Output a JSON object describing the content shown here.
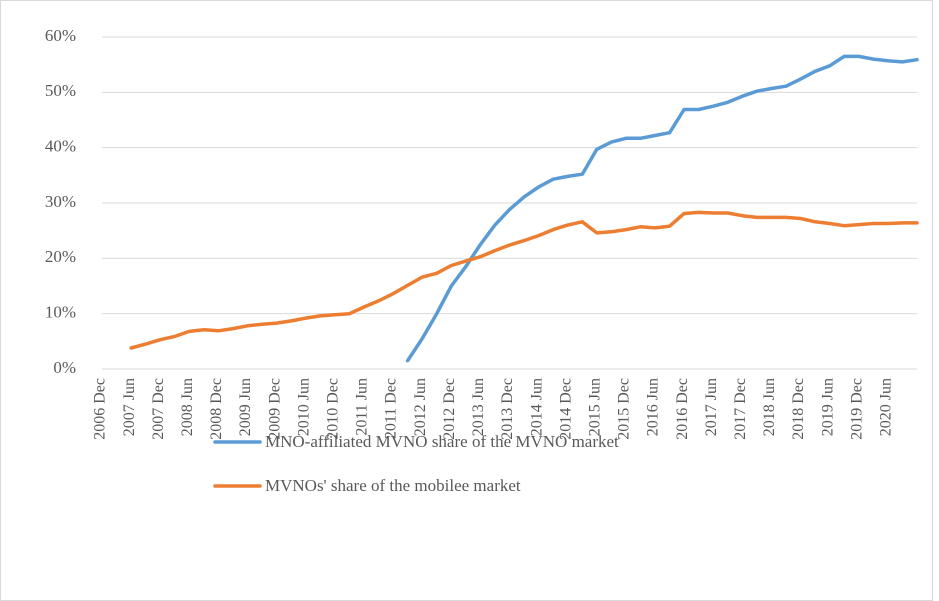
{
  "chart_data": {
    "type": "line",
    "categories": [
      "2006 Dec",
      null,
      "2007 Jun",
      null,
      "2007 Dec",
      null,
      "2008 Jun",
      null,
      "2008 Dec",
      null,
      "2009 Jun",
      null,
      "2009 Dec",
      null,
      "2010 Jun",
      null,
      "2010 Dec",
      null,
      "2011 Jun",
      null,
      "2011 Dec",
      null,
      "2012 Jun",
      null,
      "2012 Dec",
      null,
      "2013 Jun",
      null,
      "2013 Dec",
      null,
      "2014 Jun",
      null,
      "2014 Dec",
      null,
      "2015 Jun",
      null,
      "2015 Dec",
      null,
      "2016 Jun",
      null,
      "2016 Dec",
      null,
      "2017 Jun",
      null,
      "2017 Dec",
      null,
      "2018 Jun",
      null,
      "2018 Dec",
      null,
      "2019 Jun",
      null,
      "2019 Dec",
      null,
      "2020 Jun",
      null,
      null
    ],
    "series": [
      {
        "name": "MNO-affiliated MVNO share of the MVNO market",
        "color": "#5b9bd5",
        "values": [
          null,
          null,
          null,
          null,
          null,
          null,
          null,
          null,
          null,
          null,
          null,
          null,
          null,
          null,
          null,
          null,
          null,
          null,
          null,
          null,
          null,
          1.5,
          5.5,
          10,
          15,
          18.5,
          22.5,
          26,
          28.8,
          31.1,
          32.9,
          34.3,
          34.8,
          35.2,
          39.7,
          41,
          41.7,
          41.7,
          42.2,
          42.7,
          46.9,
          46.9,
          47.5,
          48.2,
          49.3,
          50.2,
          50.7,
          51.1,
          52.4,
          53.8,
          54.8,
          56.5,
          56.5,
          56,
          55.7,
          55.5,
          55.9
        ]
      },
      {
        "name": "MVNOs' share of the mobilee market",
        "color": "#ed7d31",
        "values": [
          null,
          null,
          3.8,
          4.5,
          5.3,
          5.9,
          6.8,
          7.1,
          6.9,
          7.3,
          7.8,
          8.1,
          8.3,
          8.7,
          9.2,
          9.6,
          9.8,
          10.0,
          11.2,
          12.3,
          13.6,
          15.1,
          16.6,
          17.3,
          18.7,
          19.5,
          20.3,
          21.4,
          22.4,
          23.2,
          24.1,
          25.2,
          26.0,
          26.6,
          24.6,
          24.8,
          25.2,
          25.7,
          25.5,
          25.8,
          28.1,
          28.3,
          28.2,
          28.2,
          27.7,
          27.4,
          27.4,
          27.4,
          27.2,
          26.6,
          26.3,
          25.9,
          26.1,
          26.3,
          26.3,
          26.4,
          26.4
        ]
      }
    ],
    "ylim": [
      0,
      60
    ],
    "yticks": [
      {
        "value": 0,
        "label": "0%"
      },
      {
        "value": 10,
        "label": "10%"
      },
      {
        "value": 20,
        "label": "20%"
      },
      {
        "value": 30,
        "label": "30%"
      },
      {
        "value": 40,
        "label": "40%"
      },
      {
        "value": 50,
        "label": "50%"
      },
      {
        "value": 60,
        "label": "60%"
      }
    ],
    "grid": true,
    "legend": "bottom"
  }
}
